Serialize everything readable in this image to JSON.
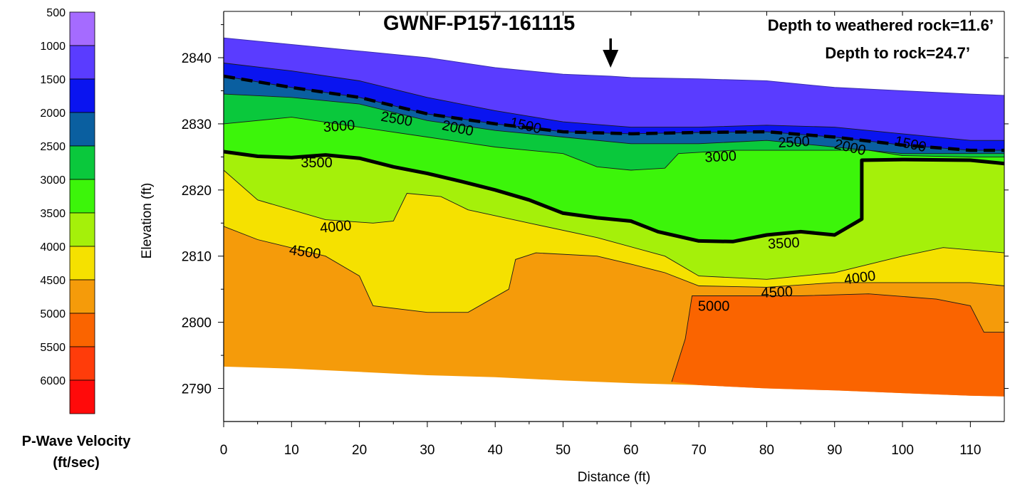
{
  "chart_data": {
    "type": "heatmap",
    "subtype": "filled-contour seismic refraction velocity profile",
    "title": "GWNF-P157-161115",
    "annotations": [
      "Depth to weathered rock=11.6’",
      "Depth to rock=24.7’"
    ],
    "xlabel": "Distance (ft)",
    "ylabel": "Elevation (ft)",
    "xlim": [
      0,
      115
    ],
    "ylim": [
      2785,
      2847
    ],
    "x_ticks": [
      0,
      10,
      20,
      30,
      40,
      50,
      60,
      70,
      80,
      90,
      100,
      110
    ],
    "y_ticks": [
      2790,
      2800,
      2810,
      2820,
      2830,
      2840
    ],
    "marker_arrow_x": 57,
    "colorbar": {
      "title": "P-Wave Velocity\n(ft/sec)",
      "title_line1": "P-Wave Velocity",
      "title_line2": "(ft/sec)",
      "levels": [
        500,
        1000,
        1500,
        2000,
        2500,
        3000,
        3500,
        4000,
        4500,
        5000,
        5500,
        6000
      ],
      "level_labels": [
        "500",
        "1000",
        "1500",
        "2000",
        "2500",
        "3000",
        "3500",
        "4000",
        "4500",
        "5000",
        "5500",
        "6000"
      ],
      "colors": [
        "#a56bff",
        "#5a3cff",
        "#0a14f0",
        "#0a5fa0",
        "#0ac83c",
        "#3cf50a",
        "#a5f00a",
        "#f5e100",
        "#f59b0a",
        "#fa6400",
        "#ff3c0a",
        "#ff0a0a"
      ]
    },
    "surfaces": {
      "ground_surface": [
        [
          0,
          2843
        ],
        [
          10,
          2842
        ],
        [
          20,
          2841
        ],
        [
          30,
          2840
        ],
        [
          40,
          2838.5
        ],
        [
          50,
          2837.5
        ],
        [
          57,
          2837.2
        ],
        [
          60,
          2837
        ],
        [
          70,
          2836.8
        ],
        [
          80,
          2836.5
        ],
        [
          90,
          2835.5
        ],
        [
          100,
          2835
        ],
        [
          110,
          2834.5
        ],
        [
          115,
          2834.3
        ]
      ],
      "model_bottom": [
        [
          0,
          2793.3
        ],
        [
          10,
          2793
        ],
        [
          20,
          2792.5
        ],
        [
          30,
          2792
        ],
        [
          40,
          2791.7
        ],
        [
          50,
          2791.2
        ],
        [
          60,
          2790.8
        ],
        [
          70,
          2790.5
        ],
        [
          80,
          2790
        ],
        [
          90,
          2789.7
        ],
        [
          100,
          2789.3
        ],
        [
          110,
          2788.9
        ],
        [
          115,
          2788.8
        ]
      ]
    },
    "contour_lines": [
      {
        "level": 1500,
        "points": [
          [
            0,
            2839.2
          ],
          [
            10,
            2838
          ],
          [
            20,
            2836.5
          ],
          [
            30,
            2834
          ],
          [
            40,
            2832
          ],
          [
            50,
            2830.3
          ],
          [
            60,
            2829.5
          ],
          [
            70,
            2829.5
          ],
          [
            80,
            2829.8
          ],
          [
            90,
            2829.5
          ],
          [
            100,
            2828.5
          ],
          [
            110,
            2827.5
          ],
          [
            115,
            2827.5
          ]
        ]
      },
      {
        "level": 2000,
        "points": [
          [
            0,
            2837.2
          ],
          [
            10,
            2835.5
          ],
          [
            20,
            2834
          ],
          [
            30,
            2831.5
          ],
          [
            40,
            2830
          ],
          [
            50,
            2828.8
          ],
          [
            60,
            2828.5
          ],
          [
            70,
            2828.7
          ],
          [
            80,
            2828.8
          ],
          [
            90,
            2828
          ],
          [
            100,
            2826.8
          ],
          [
            110,
            2826
          ],
          [
            115,
            2826
          ]
        ]
      },
      {
        "level": 2500,
        "points": [
          [
            0,
            2834.5
          ],
          [
            10,
            2834
          ],
          [
            20,
            2833
          ],
          [
            30,
            2830.5
          ],
          [
            40,
            2829
          ],
          [
            50,
            2828
          ],
          [
            60,
            2827
          ],
          [
            70,
            2827
          ],
          [
            80,
            2827.5
          ],
          [
            90,
            2826.5
          ],
          [
            100,
            2825.5
          ],
          [
            110,
            2825.5
          ],
          [
            115,
            2825.5
          ]
        ]
      },
      {
        "level": 3000,
        "points": [
          [
            0,
            2830
          ],
          [
            10,
            2831
          ],
          [
            20,
            2829.5
          ],
          [
            30,
            2828
          ],
          [
            40,
            2826.5
          ],
          [
            50,
            2825.5
          ],
          [
            55,
            2823.5
          ],
          [
            60,
            2823
          ],
          [
            65,
            2823.3
          ],
          [
            67,
            2825.5
          ],
          [
            75,
            2826
          ],
          [
            85,
            2826
          ],
          [
            95,
            2826
          ],
          [
            100,
            2825.2
          ],
          [
            110,
            2825
          ],
          [
            115,
            2825
          ]
        ]
      },
      {
        "level": 3500,
        "emphasized": true,
        "points": [
          [
            0,
            2825.8
          ],
          [
            5,
            2825.1
          ],
          [
            10,
            2824.9
          ],
          [
            15,
            2825.3
          ],
          [
            20,
            2824.8
          ],
          [
            25,
            2823.5
          ],
          [
            30,
            2822.5
          ],
          [
            35,
            2821.3
          ],
          [
            40,
            2820
          ],
          [
            45,
            2818.5
          ],
          [
            50,
            2816.5
          ],
          [
            55,
            2815.8
          ],
          [
            60,
            2815.3
          ],
          [
            64,
            2813.7
          ],
          [
            67,
            2813
          ],
          [
            70,
            2812.3
          ],
          [
            75,
            2812.2
          ],
          [
            80,
            2813.2
          ],
          [
            85,
            2813.7
          ],
          [
            90,
            2813.2
          ],
          [
            94,
            2815.6
          ],
          [
            94,
            2824.5
          ],
          [
            100,
            2824.6
          ],
          [
            110,
            2824.5
          ],
          [
            115,
            2824
          ]
        ]
      },
      {
        "level": 4000,
        "points": [
          [
            0,
            2823
          ],
          [
            5,
            2818.5
          ],
          [
            15,
            2815.5
          ],
          [
            22,
            2815
          ],
          [
            25,
            2815.3
          ],
          [
            27,
            2819.5
          ],
          [
            32,
            2819
          ],
          [
            36,
            2817
          ],
          [
            45,
            2815
          ],
          [
            55,
            2812.8
          ],
          [
            65,
            2810
          ],
          [
            70,
            2807
          ],
          [
            80,
            2806.5
          ],
          [
            90,
            2807.5
          ],
          [
            100,
            2810
          ],
          [
            106,
            2811.3
          ],
          [
            115,
            2810.5
          ]
        ]
      },
      {
        "level": 4500,
        "points": [
          [
            0,
            2814.5
          ],
          [
            5,
            2812.5
          ],
          [
            15,
            2810
          ],
          [
            20,
            2807
          ],
          [
            22,
            2802.5
          ],
          [
            30,
            2801.5
          ],
          [
            36,
            2801.5
          ],
          [
            42,
            2805
          ],
          [
            43,
            2809.5
          ],
          [
            46,
            2810.5
          ],
          [
            55,
            2810
          ],
          [
            60,
            2808.8
          ],
          [
            65,
            2807.5
          ],
          [
            70,
            2805.5
          ],
          [
            80,
            2805.3
          ],
          [
            90,
            2806
          ],
          [
            100,
            2806
          ],
          [
            110,
            2806
          ],
          [
            115,
            2805.5
          ]
        ]
      },
      {
        "level": 5000,
        "points": [
          [
            66,
            2791
          ],
          [
            68,
            2797.5
          ],
          [
            69,
            2804
          ],
          [
            75,
            2804
          ],
          [
            85,
            2804
          ],
          [
            95,
            2804.3
          ],
          [
            105,
            2803.5
          ],
          [
            110,
            2802.5
          ],
          [
            112,
            2798.5
          ],
          [
            115,
            2798.5
          ]
        ]
      }
    ],
    "contour_labels": [
      {
        "text": "3000",
        "x": 17,
        "y": 2829.7,
        "angle": -4
      },
      {
        "text": "2500",
        "x": 25.5,
        "y": 2830.8,
        "angle": 10
      },
      {
        "text": "2000",
        "x": 34.5,
        "y": 2829.4,
        "angle": 12
      },
      {
        "text": "1500",
        "x": 44.5,
        "y": 2829.8,
        "angle": 13
      },
      {
        "text": "3500",
        "x": 13.7,
        "y": 2824.2,
        "angle": 0
      },
      {
        "text": "4000",
        "x": 16.5,
        "y": 2814.5,
        "angle": -5
      },
      {
        "text": "4500",
        "x": 12,
        "y": 2810.7,
        "angle": 8
      },
      {
        "text": "3000",
        "x": 73.2,
        "y": 2825.1,
        "angle": -3
      },
      {
        "text": "2500",
        "x": 84,
        "y": 2827.3,
        "angle": -3
      },
      {
        "text": "2000",
        "x": 92.3,
        "y": 2826.5,
        "angle": 13
      },
      {
        "text": "1500",
        "x": 101.2,
        "y": 2827,
        "angle": 12
      },
      {
        "text": "3500",
        "x": 82.5,
        "y": 2812,
        "angle": -3
      },
      {
        "text": "4000",
        "x": 93.7,
        "y": 2806.8,
        "angle": -8
      },
      {
        "text": "4500",
        "x": 81.5,
        "y": 2804.6,
        "angle": -3
      },
      {
        "text": "5000",
        "x": 72.2,
        "y": 2802.5,
        "angle": 0
      }
    ]
  }
}
